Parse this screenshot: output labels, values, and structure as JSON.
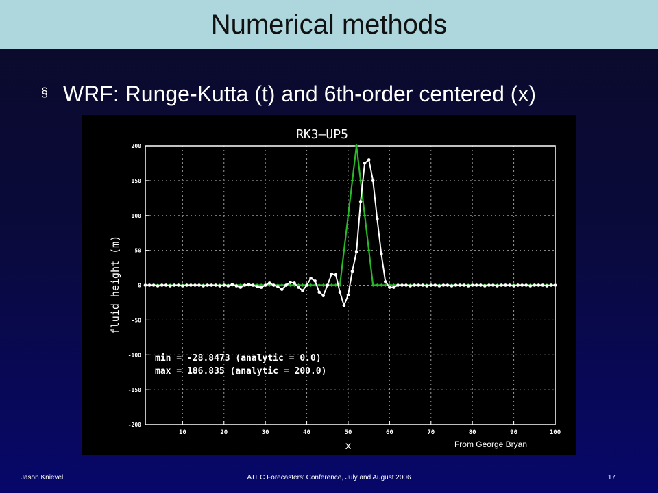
{
  "slide": {
    "title": "Numerical methods",
    "bullet_mark": "§",
    "bullet_text": "WRF: Runge-Kutta (t) and 6th-order centered (x)",
    "credit": "From George Bryan"
  },
  "footer": {
    "left": "Jason Knievel",
    "center": "ATEC Forecasters' Conference, July and August 2006",
    "right": "17"
  },
  "chart_data": {
    "type": "line",
    "title": "RK3—UP5",
    "xlabel": "x",
    "ylabel": "fluid height (m)",
    "xlim": [
      1,
      100
    ],
    "ylim": [
      -200,
      200
    ],
    "xticks": [
      10,
      20,
      30,
      40,
      50,
      60,
      70,
      80,
      90,
      100
    ],
    "yticks": [
      -200,
      -150,
      -100,
      -50,
      0,
      50,
      100,
      150,
      200
    ],
    "grid": true,
    "annotations": [
      "min = -28.8473 (analytic = 0.0)",
      "max = 186.835 (analytic = 200.0)"
    ],
    "series": [
      {
        "color": "#ffffff",
        "x": [
          1,
          2,
          3,
          4,
          5,
          6,
          7,
          8,
          9,
          10,
          11,
          12,
          13,
          14,
          15,
          16,
          17,
          18,
          19,
          20,
          21,
          22,
          23,
          24,
          25,
          26,
          27,
          28,
          29,
          30,
          31,
          32,
          33,
          34,
          35,
          36,
          37,
          38,
          39,
          40,
          41,
          42,
          43,
          44,
          45,
          46,
          47,
          48,
          49,
          50,
          51,
          52,
          53,
          54,
          55,
          56,
          57,
          58,
          59,
          60,
          61,
          62,
          63,
          64,
          65,
          66,
          67,
          68,
          69,
          70,
          71,
          72,
          73,
          74,
          75,
          76,
          77,
          78,
          79,
          80,
          81,
          82,
          83,
          84,
          85,
          86,
          87,
          88,
          89,
          90,
          91,
          92,
          93,
          94,
          95,
          96,
          97,
          98,
          99,
          100
        ],
        "values": [
          0,
          0,
          0,
          -1,
          0,
          0,
          -1,
          0,
          0,
          -1,
          0,
          0,
          0,
          0,
          -1,
          0,
          0,
          0,
          -1,
          0,
          -1,
          1,
          -1,
          -3,
          0,
          1,
          0,
          -2,
          -3,
          0,
          3,
          0,
          -2,
          -6,
          0,
          4,
          3,
          -3,
          -8,
          0,
          10,
          6,
          -10,
          -15,
          0,
          16,
          15,
          -10,
          -29,
          -14,
          20,
          48,
          120,
          175,
          180,
          150,
          95,
          45,
          5,
          -3,
          -3,
          0,
          0,
          0,
          -1,
          0,
          0,
          0,
          -1,
          0,
          0,
          -1,
          0,
          0,
          -1,
          0,
          0,
          0,
          -1,
          0,
          0,
          0,
          -1,
          0,
          0,
          -1,
          0,
          0,
          0,
          -1,
          0,
          0,
          0,
          -1,
          0,
          0,
          0,
          -1,
          0,
          0
        ]
      },
      {
        "color": "#28b828",
        "x": [
          1,
          47,
          48,
          52,
          56,
          57,
          100
        ],
        "values": [
          0,
          0,
          0,
          200,
          0,
          0,
          0
        ]
      }
    ]
  }
}
